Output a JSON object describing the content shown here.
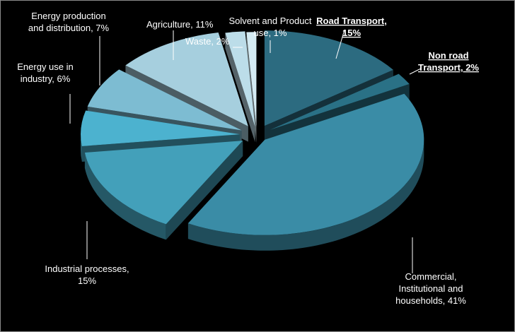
{
  "chart_data": {
    "type": "pie",
    "title": "",
    "style": "3d-exploded",
    "slices": [
      {
        "name": "Road Transport",
        "value": 15,
        "label": [
          "Road Transport,",
          "15%"
        ],
        "emphasis": true,
        "color": "#2c6b80"
      },
      {
        "name": "Non road Transport",
        "value": 2,
        "label": [
          "Non road",
          "Transport, 2%"
        ],
        "emphasis": true,
        "color": "#2a7186"
      },
      {
        "name": "Commercial, Institutional and households",
        "value": 41,
        "label": [
          "Commercial,",
          "Institutional and",
          "households, 41%"
        ],
        "emphasis": false,
        "color": "#3a8ca6"
      },
      {
        "name": "Industrial processes",
        "value": 15,
        "label": [
          "Industrial processes,",
          "15%"
        ],
        "emphasis": false,
        "color": "#43a0ba"
      },
      {
        "name": "Energy use in industry",
        "value": 6,
        "label": [
          "Energy use in",
          "industry, 6%"
        ],
        "emphasis": false,
        "color": "#4cb2cf"
      },
      {
        "name": "Energy production and distribution",
        "value": 7,
        "label": [
          "Energy production",
          "and distribution, 7%"
        ],
        "emphasis": false,
        "color": "#7dbcd2"
      },
      {
        "name": "Agriculture",
        "value": 11,
        "label": [
          "Agriculture, 11%"
        ],
        "emphasis": false,
        "color": "#a6cfde"
      },
      {
        "name": "Waste",
        "value": 2,
        "label": [
          "Waste, 2%"
        ],
        "emphasis": false,
        "color": "#bcdde9"
      },
      {
        "name": "Solvent and Product use",
        "value": 1,
        "label": [
          "Solvent and Product",
          "use, 1%"
        ],
        "emphasis": false,
        "color": "#d4ebf3"
      }
    ]
  }
}
